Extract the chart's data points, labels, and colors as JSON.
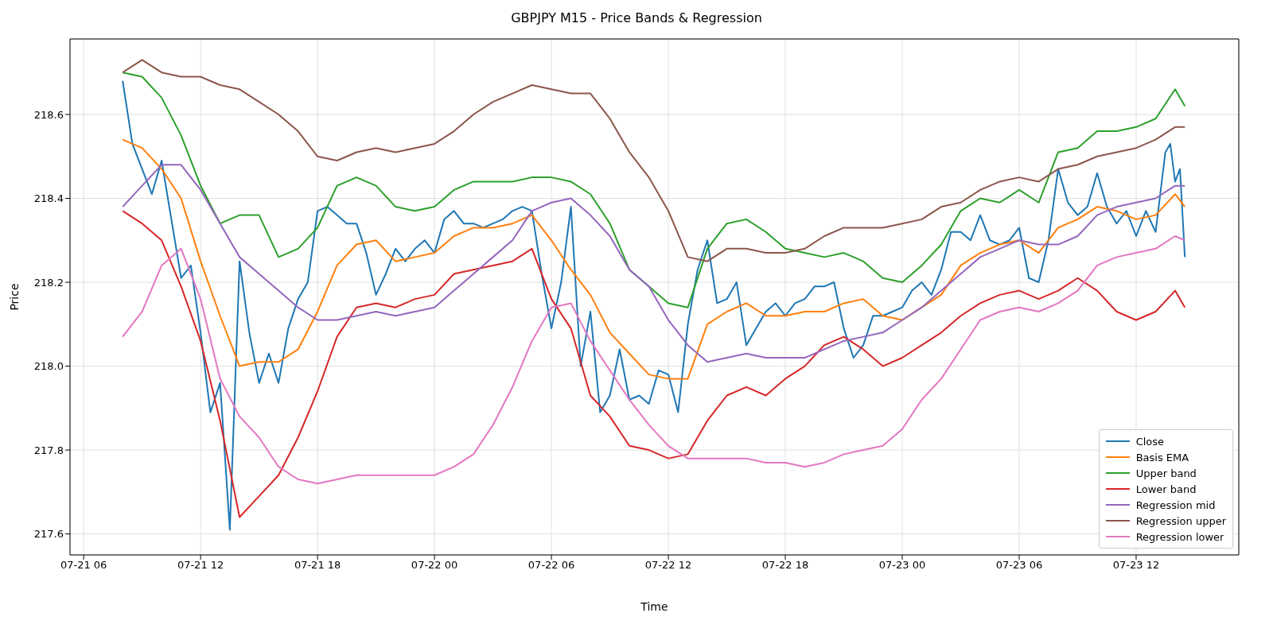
{
  "chart_data": {
    "type": "line",
    "title": "GBPJPY M15 - Price Bands & Regression",
    "xlabel": "Time",
    "ylabel": "Price",
    "x": [
      "--07-21T08:00",
      "--07-21T09:00",
      "--07-21T10:00",
      "--07-21T11:00",
      "--07-21T12:00",
      "--07-21T13:00",
      "--07-21T14:00",
      "--07-21T15:00",
      "--07-21T16:00",
      "--07-21T17:00",
      "--07-21T18:00",
      "--07-21T19:00",
      "--07-21T20:00",
      "--07-21T21:00",
      "--07-21T22:00",
      "--07-21T23:00",
      "--07-22T00:00",
      "--07-22T01:00",
      "--07-22T02:00",
      "--07-22T03:00",
      "--07-22T04:00",
      "--07-22T05:00",
      "--07-22T06:00",
      "--07-22T07:00",
      "--07-22T08:00",
      "--07-22T09:00",
      "--07-22T10:00",
      "--07-22T11:00",
      "--07-22T12:00",
      "--07-22T13:00",
      "--07-22T14:00",
      "--07-22T15:00",
      "--07-22T16:00",
      "--07-22T17:00",
      "--07-22T18:00",
      "--07-22T19:00",
      "--07-22T20:00",
      "--07-22T21:00",
      "--07-22T22:00",
      "--07-22T23:00",
      "--07-23T00:00",
      "--07-23T01:00",
      "--07-23T02:00",
      "--07-23T03:00",
      "--07-23T04:00",
      "--07-23T05:00",
      "--07-23T06:00",
      "--07-23T07:00",
      "--07-23T08:00",
      "--07-23T09:00",
      "--07-23T10:00",
      "--07-23T11:00",
      "--07-23T12:00",
      "--07-23T13:00",
      "--07-23T14:00",
      "--07-23T14:30"
    ],
    "series": [
      {
        "name": "Close",
        "color": "#1f77b4",
        "x": [
          "--07-21T08:00",
          "--07-21T08:30",
          "--07-21T09:00",
          "--07-21T09:30",
          "--07-21T10:00",
          "--07-21T10:30",
          "--07-21T11:00",
          "--07-21T11:30",
          "--07-21T12:00",
          "--07-21T12:30",
          "--07-21T13:00",
          "--07-21T13:30",
          "--07-21T14:00",
          "--07-21T14:30",
          "--07-21T15:00",
          "--07-21T15:30",
          "--07-21T16:00",
          "--07-21T16:30",
          "--07-21T17:00",
          "--07-21T17:30",
          "--07-21T18:00",
          "--07-21T18:30",
          "--07-21T19:00",
          "--07-21T19:30",
          "--07-21T20:00",
          "--07-21T20:30",
          "--07-21T21:00",
          "--07-21T21:30",
          "--07-21T22:00",
          "--07-21T22:30",
          "--07-21T23:00",
          "--07-21T23:30",
          "--07-22T00:00",
          "--07-22T00:30",
          "--07-22T01:00",
          "--07-22T01:30",
          "--07-22T02:00",
          "--07-22T02:30",
          "--07-22T03:00",
          "--07-22T03:30",
          "--07-22T04:00",
          "--07-22T04:30",
          "--07-22T05:00",
          "--07-22T05:30",
          "--07-22T06:00",
          "--07-22T06:30",
          "--07-22T07:00",
          "--07-22T07:30",
          "--07-22T08:00",
          "--07-22T08:30",
          "--07-22T09:00",
          "--07-22T09:30",
          "--07-22T10:00",
          "--07-22T10:30",
          "--07-22T11:00",
          "--07-22T11:30",
          "--07-22T12:00",
          "--07-22T12:30",
          "--07-22T13:00",
          "--07-22T13:30",
          "--07-22T14:00",
          "--07-22T14:30",
          "--07-22T15:00",
          "--07-22T15:30",
          "--07-22T16:00",
          "--07-22T16:30",
          "--07-22T17:00",
          "--07-22T17:30",
          "--07-22T18:00",
          "--07-22T18:30",
          "--07-22T19:00",
          "--07-22T19:30",
          "--07-22T20:00",
          "--07-22T20:30",
          "--07-22T21:00",
          "--07-22T21:30",
          "--07-22T22:00",
          "--07-22T22:30",
          "--07-22T23:00",
          "--07-22T23:30",
          "--07-23T00:00",
          "--07-23T00:30",
          "--07-23T01:00",
          "--07-23T01:30",
          "--07-23T02:00",
          "--07-23T02:30",
          "--07-23T03:00",
          "--07-23T03:30",
          "--07-23T04:00",
          "--07-23T04:30",
          "--07-23T05:00",
          "--07-23T05:30",
          "--07-23T06:00",
          "--07-23T06:30",
          "--07-23T07:00",
          "--07-23T07:30",
          "--07-23T08:00",
          "--07-23T08:30",
          "--07-23T09:00",
          "--07-23T09:30",
          "--07-23T10:00",
          "--07-23T10:30",
          "--07-23T11:00",
          "--07-23T11:30",
          "--07-23T12:00",
          "--07-23T12:30",
          "--07-23T13:00",
          "--07-23T13:30",
          "--07-23T13:45",
          "--07-23T14:00",
          "--07-23T14:15",
          "--07-23T14:30"
        ],
        "values": [
          218.68,
          218.53,
          218.47,
          218.41,
          218.49,
          218.35,
          218.21,
          218.24,
          218.08,
          217.89,
          217.96,
          217.61,
          218.25,
          218.08,
          217.96,
          218.03,
          217.96,
          218.09,
          218.16,
          218.2,
          218.37,
          218.38,
          218.36,
          218.34,
          218.34,
          218.27,
          218.17,
          218.22,
          218.28,
          218.25,
          218.28,
          218.3,
          218.27,
          218.35,
          218.37,
          218.34,
          218.34,
          218.33,
          218.34,
          218.35,
          218.37,
          218.38,
          218.37,
          218.22,
          218.09,
          218.2,
          218.38,
          218.0,
          218.13,
          217.89,
          217.93,
          218.04,
          217.92,
          217.93,
          217.91,
          217.99,
          217.98,
          217.89,
          218.1,
          218.23,
          218.3,
          218.15,
          218.16,
          218.2,
          218.05,
          218.09,
          218.13,
          218.15,
          218.12,
          218.15,
          218.16,
          218.19,
          218.19,
          218.2,
          218.09,
          218.02,
          218.05,
          218.12,
          218.12,
          218.13,
          218.14,
          218.18,
          218.2,
          218.17,
          218.23,
          218.32,
          218.32,
          218.3,
          218.36,
          218.3,
          218.29,
          218.3,
          218.33,
          218.21,
          218.2,
          218.3,
          218.47,
          218.39,
          218.36,
          218.38,
          218.46,
          218.38,
          218.34,
          218.37,
          218.31,
          218.37,
          218.32,
          218.51,
          218.53,
          218.44,
          218.47,
          218.26
        ]
      },
      {
        "name": "Basis EMA",
        "color": "#ff7f0e",
        "values": [
          218.54,
          218.52,
          218.47,
          218.4,
          218.25,
          218.12,
          218.0,
          218.01,
          218.01,
          218.04,
          218.13,
          218.24,
          218.29,
          218.3,
          218.25,
          218.26,
          218.27,
          218.31,
          218.33,
          218.33,
          218.34,
          218.36,
          218.3,
          218.23,
          218.17,
          218.08,
          218.03,
          217.98,
          217.97,
          217.97,
          218.1,
          218.13,
          218.15,
          218.12,
          218.12,
          218.13,
          218.13,
          218.15,
          218.16,
          218.12,
          218.11,
          218.14,
          218.17,
          218.24,
          218.27,
          218.29,
          218.3,
          218.27,
          218.33,
          218.35,
          218.38,
          218.37,
          218.35,
          218.36,
          218.41,
          218.38
        ]
      },
      {
        "name": "Upper band",
        "color": "#2ca02c",
        "values": [
          218.7,
          218.69,
          218.64,
          218.55,
          218.43,
          218.34,
          218.36,
          218.36,
          218.26,
          218.28,
          218.33,
          218.43,
          218.45,
          218.43,
          218.38,
          218.37,
          218.38,
          218.42,
          218.44,
          218.44,
          218.44,
          218.45,
          218.45,
          218.44,
          218.41,
          218.34,
          218.23,
          218.19,
          218.15,
          218.14,
          218.28,
          218.34,
          218.35,
          218.32,
          218.28,
          218.27,
          218.26,
          218.27,
          218.25,
          218.21,
          218.2,
          218.24,
          218.29,
          218.37,
          218.4,
          218.39,
          218.42,
          218.39,
          218.51,
          218.52,
          218.56,
          218.56,
          218.57,
          218.59,
          218.66,
          218.62
        ]
      },
      {
        "name": "Lower band",
        "color": "#d62728",
        "values": [
          218.37,
          218.34,
          218.3,
          218.19,
          218.06,
          217.87,
          217.64,
          217.69,
          217.74,
          217.83,
          217.94,
          218.07,
          218.14,
          218.15,
          218.14,
          218.16,
          218.17,
          218.22,
          218.23,
          218.24,
          218.25,
          218.28,
          218.16,
          218.09,
          217.93,
          217.88,
          217.81,
          217.8,
          217.78,
          217.79,
          217.87,
          217.93,
          217.95,
          217.93,
          217.97,
          218.0,
          218.05,
          218.07,
          218.04,
          218.0,
          218.02,
          218.05,
          218.08,
          218.12,
          218.15,
          218.17,
          218.18,
          218.16,
          218.18,
          218.21,
          218.18,
          218.13,
          218.11,
          218.13,
          218.18,
          218.14
        ]
      },
      {
        "name": "Regression mid",
        "color": "#9467bd",
        "values": [
          218.38,
          218.43,
          218.48,
          218.48,
          218.42,
          218.34,
          218.26,
          218.22,
          218.18,
          218.14,
          218.11,
          218.11,
          218.12,
          218.13,
          218.12,
          218.13,
          218.14,
          218.18,
          218.22,
          218.26,
          218.3,
          218.37,
          218.39,
          218.4,
          218.36,
          218.31,
          218.23,
          218.19,
          218.11,
          218.05,
          218.01,
          218.02,
          218.03,
          218.02,
          218.02,
          218.02,
          218.04,
          218.06,
          218.07,
          218.08,
          218.11,
          218.14,
          218.18,
          218.22,
          218.26,
          218.28,
          218.3,
          218.29,
          218.29,
          218.31,
          218.36,
          218.38,
          218.39,
          218.4,
          218.43,
          218.43
        ]
      },
      {
        "name": "Regression upper",
        "color": "#8c564b",
        "values": [
          218.7,
          218.73,
          218.7,
          218.69,
          218.69,
          218.67,
          218.66,
          218.63,
          218.6,
          218.56,
          218.5,
          218.49,
          218.51,
          218.52,
          218.51,
          218.52,
          218.53,
          218.56,
          218.6,
          218.63,
          218.65,
          218.67,
          218.66,
          218.65,
          218.65,
          218.59,
          218.51,
          218.45,
          218.37,
          218.26,
          218.25,
          218.28,
          218.28,
          218.27,
          218.27,
          218.28,
          218.31,
          218.33,
          218.33,
          218.33,
          218.34,
          218.35,
          218.38,
          218.39,
          218.42,
          218.44,
          218.45,
          218.44,
          218.47,
          218.48,
          218.5,
          218.51,
          218.52,
          218.54,
          218.57,
          218.57
        ]
      },
      {
        "name": "Regression lower",
        "color": "#e377c2",
        "values": [
          218.07,
          218.13,
          218.24,
          218.28,
          218.16,
          217.97,
          217.88,
          217.83,
          217.76,
          217.73,
          217.72,
          217.73,
          217.74,
          217.74,
          217.74,
          217.74,
          217.74,
          217.76,
          217.79,
          217.86,
          217.95,
          218.06,
          218.14,
          218.15,
          218.06,
          217.99,
          217.92,
          217.86,
          217.81,
          217.78,
          217.78,
          217.78,
          217.78,
          217.77,
          217.77,
          217.76,
          217.77,
          217.79,
          217.8,
          217.81,
          217.85,
          217.92,
          217.97,
          218.04,
          218.11,
          218.13,
          218.14,
          218.13,
          218.15,
          218.18,
          218.24,
          218.26,
          218.27,
          218.28,
          218.31,
          218.3
        ]
      }
    ],
    "xlim": [
      "--07-21T05:18",
      "--07-23T17:16"
    ],
    "xticks": [
      {
        "value": "--07-21T06:00",
        "label": "07-21 06"
      },
      {
        "value": "--07-21T12:00",
        "label": "07-21 12"
      },
      {
        "value": "--07-21T18:00",
        "label": "07-21 18"
      },
      {
        "value": "--07-22T00:00",
        "label": "07-22 00"
      },
      {
        "value": "--07-22T06:00",
        "label": "07-22 06"
      },
      {
        "value": "--07-22T12:00",
        "label": "07-22 12"
      },
      {
        "value": "--07-22T18:00",
        "label": "07-22 18"
      },
      {
        "value": "--07-23T00:00",
        "label": "07-23 00"
      },
      {
        "value": "--07-23T06:00",
        "label": "07-23 06"
      },
      {
        "value": "--07-23T12:00",
        "label": "07-23 12"
      }
    ],
    "ylim": [
      217.55,
      218.78
    ],
    "yticks": [
      {
        "value": 217.6,
        "label": "217.6"
      },
      {
        "value": 217.8,
        "label": "217.8"
      },
      {
        "value": 218.0,
        "label": "218.0"
      },
      {
        "value": 218.2,
        "label": "218.2"
      },
      {
        "value": 218.4,
        "label": "218.4"
      },
      {
        "value": 218.6,
        "label": "218.6"
      }
    ],
    "grid": true,
    "legend": "bottom right"
  }
}
